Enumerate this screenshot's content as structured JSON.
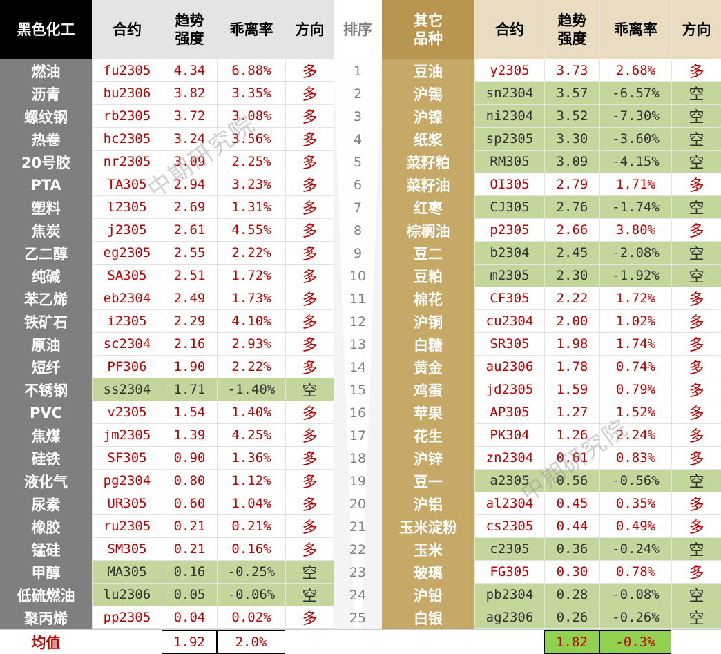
{
  "left": {
    "headers": {
      "name": "黑色化工",
      "contract": "合约",
      "trend": "趋势\n强度",
      "dev": "乖离率",
      "dir": "方向"
    },
    "rows": [
      {
        "name": "燃油",
        "contract": "fu2305",
        "trend": "4.34",
        "dev": "6.88%",
        "dir": "多"
      },
      {
        "name": "沥青",
        "contract": "bu2306",
        "trend": "3.82",
        "dev": "3.35%",
        "dir": "多"
      },
      {
        "name": "螺纹钢",
        "contract": "rb2305",
        "trend": "3.72",
        "dev": "3.08%",
        "dir": "多"
      },
      {
        "name": "热卷",
        "contract": "hc2305",
        "trend": "3.24",
        "dev": "3.56%",
        "dir": "多"
      },
      {
        "name": "20号胶",
        "contract": "nr2305",
        "trend": "3.09",
        "dev": "2.25%",
        "dir": "多"
      },
      {
        "name": "PTA",
        "contract": "TA305",
        "trend": "2.94",
        "dev": "3.23%",
        "dir": "多"
      },
      {
        "name": "塑料",
        "contract": "l2305",
        "trend": "2.69",
        "dev": "1.31%",
        "dir": "多"
      },
      {
        "name": "焦炭",
        "contract": "j2305",
        "trend": "2.61",
        "dev": "4.55%",
        "dir": "多"
      },
      {
        "name": "乙二醇",
        "contract": "eg2305",
        "trend": "2.55",
        "dev": "2.22%",
        "dir": "多"
      },
      {
        "name": "纯碱",
        "contract": "SA305",
        "trend": "2.51",
        "dev": "1.72%",
        "dir": "多"
      },
      {
        "name": "苯乙烯",
        "contract": "eb2304",
        "trend": "2.49",
        "dev": "1.73%",
        "dir": "多"
      },
      {
        "name": "铁矿石",
        "contract": "i2305",
        "trend": "2.29",
        "dev": "4.10%",
        "dir": "多"
      },
      {
        "name": "原油",
        "contract": "sc2304",
        "trend": "2.16",
        "dev": "2.93%",
        "dir": "多"
      },
      {
        "name": "短纤",
        "contract": "PF306",
        "trend": "1.90",
        "dev": "2.22%",
        "dir": "多"
      },
      {
        "name": "不锈钢",
        "contract": "ss2304",
        "trend": "1.71",
        "dev": "-1.40%",
        "dir": "空"
      },
      {
        "name": "PVC",
        "contract": "v2305",
        "trend": "1.54",
        "dev": "1.40%",
        "dir": "多"
      },
      {
        "name": "焦煤",
        "contract": "jm2305",
        "trend": "1.39",
        "dev": "4.25%",
        "dir": "多"
      },
      {
        "name": "硅铁",
        "contract": "SF305",
        "trend": "0.90",
        "dev": "1.36%",
        "dir": "多"
      },
      {
        "name": "液化气",
        "contract": "pg2304",
        "trend": "0.80",
        "dev": "1.12%",
        "dir": "多"
      },
      {
        "name": "尿素",
        "contract": "UR305",
        "trend": "0.60",
        "dev": "1.04%",
        "dir": "多"
      },
      {
        "name": "橡胶",
        "contract": "ru2305",
        "trend": "0.21",
        "dev": "0.21%",
        "dir": "多"
      },
      {
        "name": "锰硅",
        "contract": "SM305",
        "trend": "0.21",
        "dev": "0.16%",
        "dir": "多"
      },
      {
        "name": "甲醇",
        "contract": "MA305",
        "trend": "0.16",
        "dev": "-0.25%",
        "dir": "空"
      },
      {
        "name": "低硫燃油",
        "contract": "lu2306",
        "trend": "0.05",
        "dev": "-0.06%",
        "dir": "空"
      },
      {
        "name": "聚丙烯",
        "contract": "pp2305",
        "trend": "0.04",
        "dev": "0.02%",
        "dir": "多"
      }
    ],
    "avg": {
      "label": "均值",
      "trend": "1.92",
      "dev": "2.0%"
    }
  },
  "rank": {
    "header": "排序",
    "values": [
      "1",
      "2",
      "3",
      "4",
      "5",
      "6",
      "7",
      "8",
      "9",
      "10",
      "11",
      "12",
      "13",
      "14",
      "15",
      "16",
      "17",
      "18",
      "19",
      "20",
      "21",
      "22",
      "23",
      "24",
      "25"
    ]
  },
  "right": {
    "headers": {
      "name": "其它\n品种",
      "contract": "合约",
      "trend": "趋势\n强度",
      "dev": "乖离率",
      "dir": "方向"
    },
    "rows": [
      {
        "name": "豆油",
        "contract": "y2305",
        "trend": "3.73",
        "dev": "2.68%",
        "dir": "多"
      },
      {
        "name": "沪锡",
        "contract": "sn2304",
        "trend": "3.57",
        "dev": "-6.57%",
        "dir": "空"
      },
      {
        "name": "沪镍",
        "contract": "ni2304",
        "trend": "3.52",
        "dev": "-7.30%",
        "dir": "空"
      },
      {
        "name": "纸浆",
        "contract": "sp2305",
        "trend": "3.30",
        "dev": "-3.60%",
        "dir": "空"
      },
      {
        "name": "菜籽粕",
        "contract": "RM305",
        "trend": "3.09",
        "dev": "-4.15%",
        "dir": "空"
      },
      {
        "name": "菜籽油",
        "contract": "OI305",
        "trend": "2.79",
        "dev": "1.71%",
        "dir": "多"
      },
      {
        "name": "红枣",
        "contract": "CJ305",
        "trend": "2.76",
        "dev": "-1.74%",
        "dir": "空"
      },
      {
        "name": "棕榈油",
        "contract": "p2305",
        "trend": "2.66",
        "dev": "3.80%",
        "dir": "多"
      },
      {
        "name": "豆二",
        "contract": "b2304",
        "trend": "2.45",
        "dev": "-2.08%",
        "dir": "空"
      },
      {
        "name": "豆粕",
        "contract": "m2305",
        "trend": "2.30",
        "dev": "-1.92%",
        "dir": "空"
      },
      {
        "name": "棉花",
        "contract": "CF305",
        "trend": "2.22",
        "dev": "1.72%",
        "dir": "多"
      },
      {
        "name": "沪铜",
        "contract": "cu2304",
        "trend": "2.00",
        "dev": "1.02%",
        "dir": "多"
      },
      {
        "name": "白糖",
        "contract": "SR305",
        "trend": "1.98",
        "dev": "1.74%",
        "dir": "多"
      },
      {
        "name": "黄金",
        "contract": "au2306",
        "trend": "1.78",
        "dev": "0.74%",
        "dir": "多"
      },
      {
        "name": "鸡蛋",
        "contract": "jd2305",
        "trend": "1.59",
        "dev": "0.79%",
        "dir": "多"
      },
      {
        "name": "苹果",
        "contract": "AP305",
        "trend": "1.27",
        "dev": "1.52%",
        "dir": "多"
      },
      {
        "name": "花生",
        "contract": "PK304",
        "trend": "1.26",
        "dev": "2.24%",
        "dir": "多"
      },
      {
        "name": "沪锌",
        "contract": "zn2304",
        "trend": "0.61",
        "dev": "0.83%",
        "dir": "多"
      },
      {
        "name": "豆一",
        "contract": "a2305",
        "trend": "0.56",
        "dev": "-0.56%",
        "dir": "空"
      },
      {
        "name": "沪铝",
        "contract": "al2304",
        "trend": "0.45",
        "dev": "0.35%",
        "dir": "多"
      },
      {
        "name": "玉米淀粉",
        "contract": "cs2305",
        "trend": "0.44",
        "dev": "0.49%",
        "dir": "多"
      },
      {
        "name": "玉米",
        "contract": "c2305",
        "trend": "0.36",
        "dev": "-0.24%",
        "dir": "空"
      },
      {
        "name": "玻璃",
        "contract": "FG305",
        "trend": "0.30",
        "dev": "0.78%",
        "dir": "多"
      },
      {
        "name": "沪铅",
        "contract": "pb2304",
        "trend": "0.28",
        "dev": "-0.08%",
        "dir": "空"
      },
      {
        "name": "白银",
        "contract": "ag2306",
        "trend": "0.26",
        "dev": "-0.26%",
        "dir": "空"
      }
    ],
    "avg": {
      "trend": "1.82",
      "dev": "-0.3%"
    }
  },
  "watermark": "中期研究院",
  "colors": {
    "left_name_col": "#7f7f7f",
    "left_header_black": "#000000",
    "rank_grey": "#e8e8e8",
    "gold": "#c7a967",
    "gold_header": "#b8964f",
    "green": "#c3d69b",
    "avg_green": "#92d050",
    "red": "#c00000"
  }
}
